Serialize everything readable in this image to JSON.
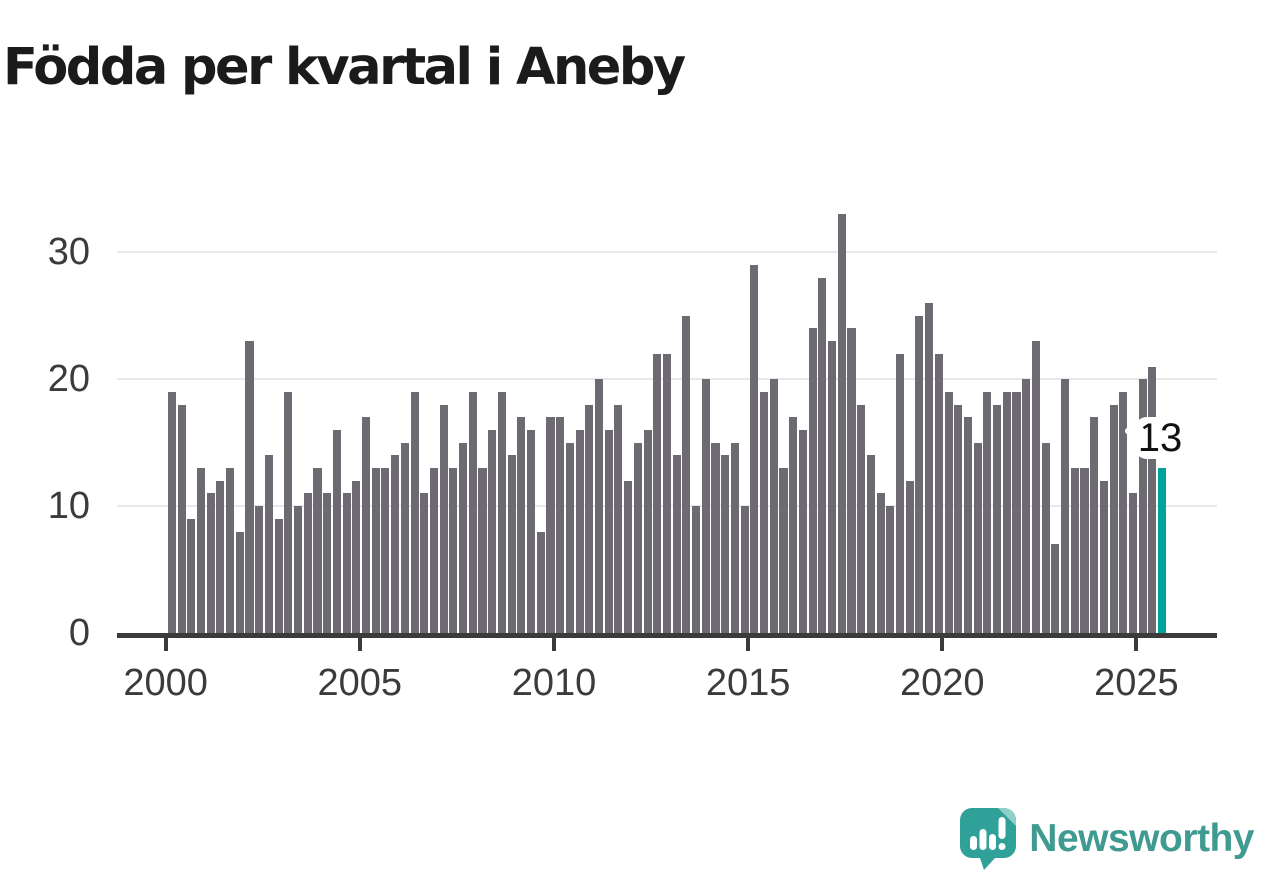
{
  "page": {
    "title": "Födda per kvartal i Aneby"
  },
  "colors": {
    "bar": "#6e6a72",
    "highlight": "#00a29a",
    "gridline": "#e8e8e8",
    "axis": "#3b3b3b",
    "title_text": "#1b1b1b",
    "logo_teal": "#2fa198",
    "logo_fold": "#8fd0ca",
    "logo_text": "#3f9a90"
  },
  "chart_data": {
    "type": "bar",
    "title": "Födda per kvartal i Aneby",
    "xlabel": "",
    "ylabel": "",
    "grid": "horizontal",
    "legend_position": "none",
    "x_axis": {
      "start_quarter": "2000 Q1",
      "end_quarter": "2025 Q3",
      "tick_labels": [
        "2000",
        "2005",
        "2010",
        "2015",
        "2020",
        "2025"
      ]
    },
    "y_axis": {
      "ticks": [
        0,
        10,
        20,
        30
      ],
      "ylim": [
        0,
        34
      ]
    },
    "series": [
      {
        "name": "Födda per kvartal",
        "frequency": "quarterly",
        "start": "2000 Q1",
        "values": [
          19,
          18,
          9,
          13,
          11,
          12,
          13,
          8,
          23,
          10,
          14,
          9,
          19,
          10,
          11,
          13,
          11,
          16,
          11,
          12,
          17,
          13,
          13,
          14,
          15,
          19,
          11,
          13,
          18,
          13,
          15,
          19,
          13,
          16,
          19,
          14,
          17,
          16,
          8,
          17,
          17,
          15,
          16,
          18,
          20,
          16,
          18,
          12,
          15,
          16,
          22,
          22,
          14,
          25,
          10,
          20,
          15,
          14,
          15,
          10,
          29,
          19,
          20,
          13,
          17,
          16,
          24,
          28,
          23,
          33,
          24,
          18,
          14,
          11,
          10,
          22,
          12,
          25,
          26,
          22,
          19,
          18,
          17,
          15,
          19,
          18,
          19,
          19,
          20,
          23,
          15,
          7,
          20,
          13,
          13,
          17,
          12,
          18,
          19,
          11,
          20,
          21,
          13
        ]
      }
    ],
    "highlight": {
      "index": 102,
      "quarter": "2025 Q3",
      "value": 13,
      "label": "13"
    }
  },
  "footer": {
    "brand": "Newsworthy"
  }
}
